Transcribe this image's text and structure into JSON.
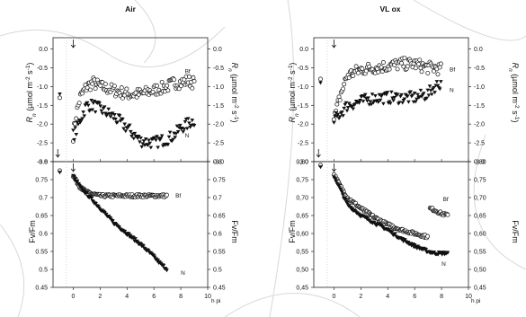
{
  "figure": {
    "x_unit_label": "h pi",
    "panels": [
      {
        "title": "Air"
      },
      {
        "title": "VL ox"
      }
    ]
  },
  "chart_data": [
    {
      "type": "scatter",
      "title": "Air",
      "xlabel": "",
      "ylabel": "Rn (µmol m-2 s-1)",
      "ylabel_parts": {
        "main": "R",
        "sub": "n",
        "unit": " (µmol m",
        "exp1": "-2",
        "mid": " s",
        "exp2": "-1",
        "close": ")"
      },
      "xlim": [
        -1.5,
        10
      ],
      "ylim": [
        -3.0,
        0.3
      ],
      "y_ticks": [
        "0.0",
        "-0.5",
        "-1.0",
        "-1.5",
        "-2.0",
        "-2.5",
        "-3.0"
      ],
      "series": [
        {
          "name": "Bf",
          "marker": "circle",
          "x": [
            -1.0,
            0,
            0.2,
            0.5,
            1,
            1.5,
            2,
            3,
            4,
            5,
            6,
            7,
            7.5,
            8,
            8.5,
            9
          ],
          "y": [
            -1.3,
            -2.3,
            -1.8,
            -1.3,
            -1.0,
            -0.9,
            -1.0,
            -1.1,
            -1.2,
            -1.2,
            -1.1,
            -1.0,
            -0.9,
            -0.9,
            -0.85,
            -0.9
          ]
        },
        {
          "name": "N",
          "marker": "triangle-down",
          "x": [
            -1.0,
            0,
            0.2,
            0.5,
            1,
            1.5,
            2,
            3,
            4,
            5,
            6,
            7,
            7.5,
            8,
            8.5,
            9
          ],
          "y": [
            -1.2,
            -2.3,
            -2.2,
            -1.9,
            -1.5,
            -1.5,
            -1.6,
            -1.8,
            -2.1,
            -2.45,
            -2.5,
            -2.4,
            -2.3,
            -2.1,
            -2.0,
            -1.9
          ]
        }
      ]
    },
    {
      "type": "scatter",
      "title": "Air",
      "xlabel": "h pi",
      "ylabel": "Fv/Fm",
      "xlim": [
        -1.5,
        10
      ],
      "ylim": [
        0.45,
        0.8
      ],
      "x_ticks": [
        "0",
        "2",
        "4",
        "6",
        "8",
        "10"
      ],
      "y_ticks": [
        "0.8",
        "0.75",
        "0.7",
        "0.65",
        "0.6",
        "0.55",
        "0.5",
        "0.45"
      ],
      "series": [
        {
          "name": "Bf",
          "marker": "circle",
          "x": [
            -1.0,
            0,
            0.5,
            1,
            1.5,
            2,
            3,
            4,
            5,
            6,
            7
          ],
          "y": [
            0.775,
            0.76,
            0.73,
            0.715,
            0.71,
            0.705,
            0.705,
            0.705,
            0.705,
            0.705,
            0.705
          ]
        },
        {
          "name": "N",
          "marker": "triangle-down",
          "x": [
            -1.0,
            0,
            0.5,
            1,
            2,
            3,
            4,
            5,
            6,
            6.5,
            7
          ],
          "y": [
            0.77,
            0.76,
            0.73,
            0.71,
            0.67,
            0.63,
            0.6,
            0.57,
            0.535,
            0.515,
            0.5
          ]
        }
      ]
    },
    {
      "type": "scatter",
      "title": "VL ox",
      "xlabel": "",
      "ylabel": "Rn (µmol m-2 s-1)",
      "ylabel_parts": {
        "main": "R",
        "sub": "n",
        "unit": " (µmol m",
        "exp1": "-2",
        "mid": " s",
        "exp2": "-1",
        "close": ")"
      },
      "xlim": [
        -1.5,
        10
      ],
      "ylim": [
        -3.0,
        0.3
      ],
      "y_ticks": [
        "0.0",
        "-0.5",
        "-1.0",
        "-1.5",
        "-2.0",
        "-2.5",
        "-3.0"
      ],
      "series": [
        {
          "name": "Bf",
          "marker": "circle",
          "x": [
            -1.0,
            0,
            0.5,
            1,
            2,
            3,
            4,
            5,
            6,
            7,
            7.5,
            8
          ],
          "y": [
            -0.8,
            -1.9,
            -1.2,
            -0.7,
            -0.55,
            -0.5,
            -0.45,
            -0.4,
            -0.4,
            -0.5,
            -0.5,
            -0.55
          ]
        },
        {
          "name": "N",
          "marker": "triangle-down",
          "x": [
            -1.0,
            0,
            0.5,
            1,
            2,
            3,
            4,
            5,
            6,
            7,
            7.5,
            8
          ],
          "y": [
            -0.9,
            -1.9,
            -1.7,
            -1.5,
            -1.4,
            -1.3,
            -1.3,
            -1.3,
            -1.3,
            -1.2,
            -1.0,
            -0.9
          ]
        }
      ]
    },
    {
      "type": "scatter",
      "title": "VL ox",
      "xlabel": "h pi",
      "ylabel": "Fv/Fm",
      "xlim": [
        -1.5,
        10
      ],
      "ylim": [
        0.45,
        0.8
      ],
      "x_ticks": [
        "0",
        "2",
        "4",
        "6",
        "8",
        "10"
      ],
      "y_ticks": [
        "0,80",
        "0,75",
        "0,70",
        "0,65",
        "0,60",
        "0,55",
        "0,50",
        "0,45"
      ],
      "series": [
        {
          "name": "Bf",
          "marker": "circle",
          "x": [
            -1.0,
            0,
            0.5,
            1,
            2,
            3,
            4,
            5,
            6,
            7,
            7.1,
            7.5,
            8,
            8.5
          ],
          "y": [
            0.79,
            0.765,
            0.73,
            0.7,
            0.67,
            0.645,
            0.625,
            0.61,
            0.6,
            0.59,
            0.67,
            0.665,
            0.655,
            0.65
          ]
        },
        {
          "name": "N",
          "marker": "triangle-down",
          "x": [
            -1.0,
            0,
            0.5,
            1,
            2,
            3,
            4,
            5,
            6,
            7,
            7.5,
            8,
            8.5
          ],
          "y": [
            0.785,
            0.76,
            0.72,
            0.68,
            0.65,
            0.63,
            0.61,
            0.585,
            0.565,
            0.55,
            0.545,
            0.545,
            0.545
          ]
        }
      ]
    }
  ]
}
